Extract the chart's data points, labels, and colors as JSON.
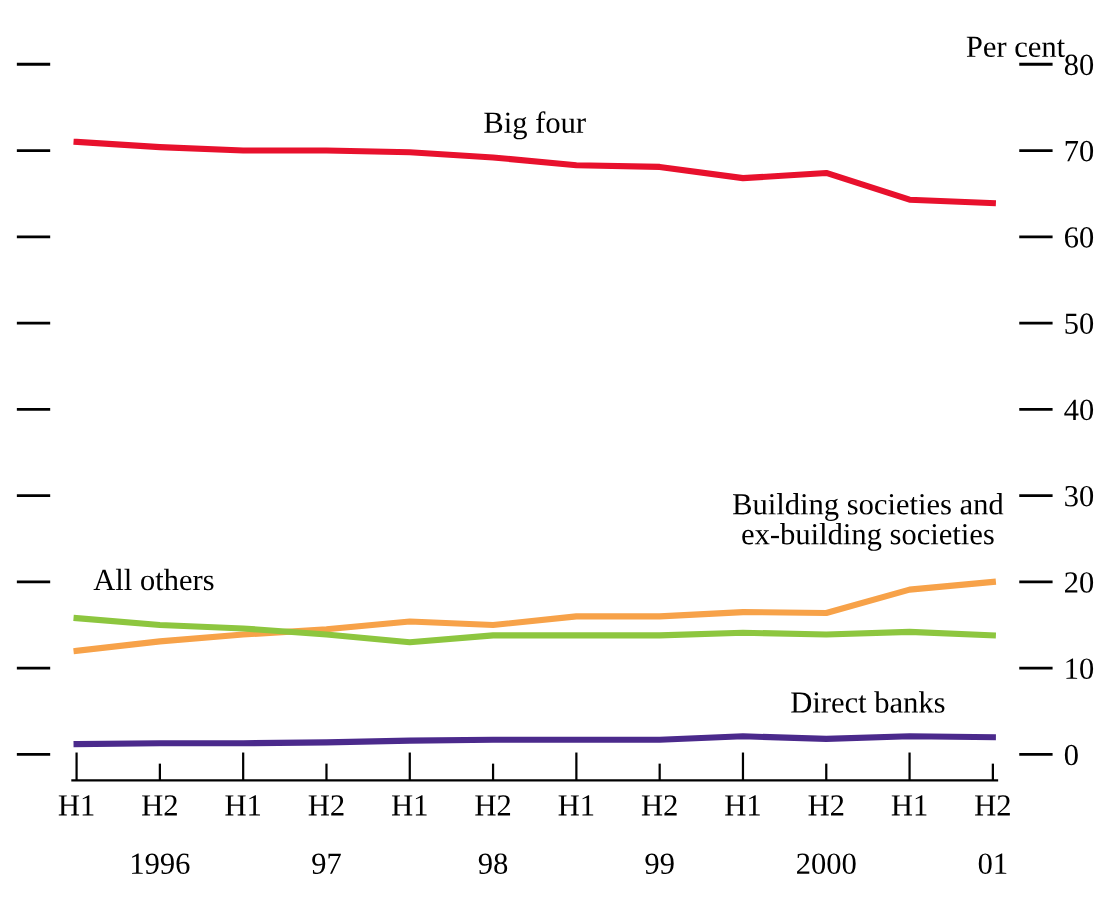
{
  "chart_data": {
    "type": "line",
    "ylabel": "Per cent",
    "categories": [
      "H1",
      "H2",
      "H1",
      "H2",
      "H1",
      "H2",
      "H1",
      "H2",
      "H1",
      "H2",
      "H1",
      "H2"
    ],
    "annotations": [
      "1996",
      "97",
      "98",
      "99",
      "2000",
      "01"
    ],
    "series": [
      {
        "name": "Big four",
        "color": "#e8112d",
        "values": [
          71,
          70.4,
          70,
          70,
          69.8,
          69.2,
          68.3,
          68.1,
          66.8,
          67.4,
          64.3,
          63.9
        ]
      },
      {
        "name": "Building societies and\nex-building societies",
        "color": "#f7a249",
        "values": [
          12,
          13.1,
          13.9,
          14.5,
          15.4,
          15,
          16,
          16,
          16.5,
          16.4,
          19.1,
          20
        ]
      },
      {
        "name": "All others",
        "color": "#8dc63f",
        "values": [
          15.8,
          15,
          14.6,
          13.9,
          13,
          13.8,
          13.8,
          13.8,
          14.1,
          13.9,
          14.2,
          13.8
        ]
      },
      {
        "name": "Direct banks",
        "color": "#4b2a8c",
        "values": [
          1.2,
          1.3,
          1.3,
          1.4,
          1.6,
          1.7,
          1.7,
          1.7,
          2.1,
          1.8,
          2.1,
          2.0
        ]
      }
    ],
    "ylim": [
      -3,
      80
    ],
    "yticks": [
      0,
      10,
      20,
      30,
      40,
      50,
      60,
      70,
      80
    ],
    "grid": false,
    "legend": false
  }
}
